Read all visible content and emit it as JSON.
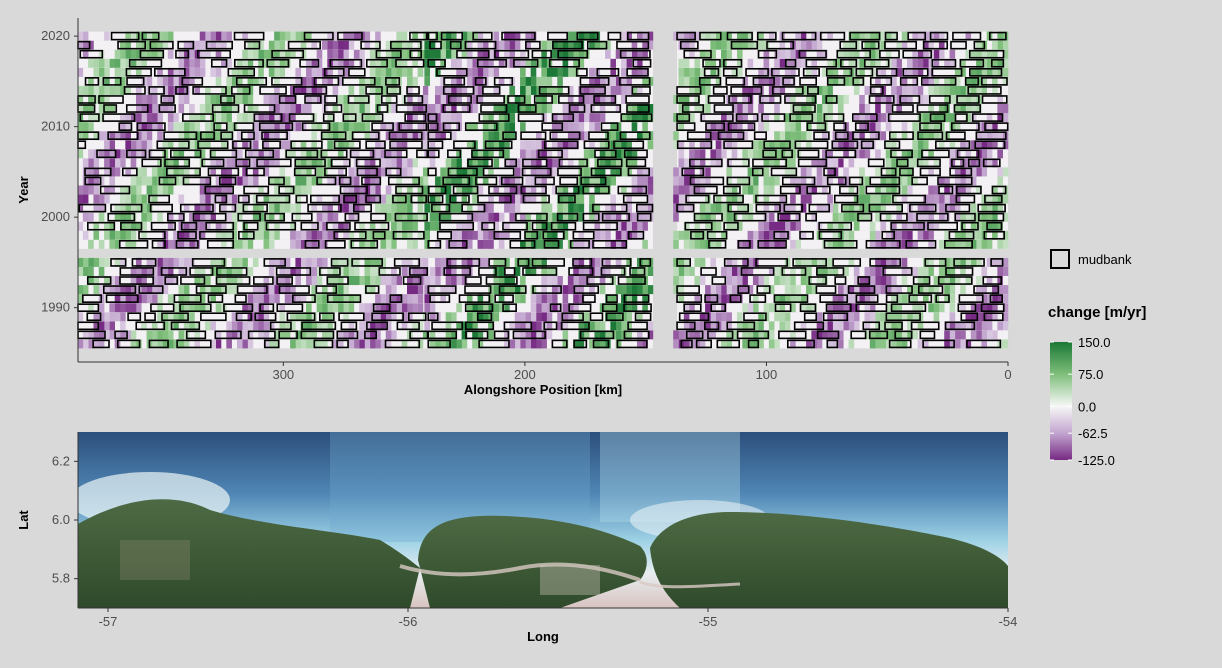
{
  "chart_data": [
    {
      "type": "heatmap",
      "title": "",
      "xlabel": "Alongshore Position [km]",
      "ylabel": "Year",
      "x_reversed": true,
      "xlim": [
        0,
        385
      ],
      "ylim": [
        1984,
        2022
      ],
      "x_ticks": [
        {
          "value": 300,
          "label": "300"
        },
        {
          "value": 200,
          "label": "200"
        },
        {
          "value": 100,
          "label": "100"
        },
        {
          "value": 0,
          "label": "0"
        }
      ],
      "y_ticks": [
        {
          "value": 1990,
          "label": "1990"
        },
        {
          "value": 2000,
          "label": "2000"
        },
        {
          "value": 2010,
          "label": "2010"
        },
        {
          "value": 2020,
          "label": "2020"
        }
      ],
      "data_years": [
        1986,
        2020
      ],
      "missing_years": [
        1996
      ],
      "segments_km": [
        [
          137,
          240
        ],
        [
          147,
          240
        ],
        [
          0,
          137
        ]
      ],
      "grid": false,
      "color_scale": {
        "title": "change [m/yr]",
        "min": -125.0,
        "max": 150.0,
        "stops": [
          {
            "value": 150.0,
            "color": "#1b7837"
          },
          {
            "value": 75.0,
            "color": "#7fbf7b"
          },
          {
            "value": 0.0,
            "color": "#f7f7f7"
          },
          {
            "value": -62.5,
            "color": "#c2a5cf"
          },
          {
            "value": -125.0,
            "color": "#762a83"
          }
        ],
        "tick_labels": [
          "150.0",
          "75.0",
          "0.0",
          "-62.5",
          "-125.0"
        ]
      },
      "overlay": {
        "name": "mudbank",
        "style": "black outlined rectangles"
      },
      "legend_position": "right"
    },
    {
      "type": "map",
      "title": "",
      "xlabel": "Long",
      "ylabel": "Lat",
      "xlim": [
        -57.1,
        -54.0
      ],
      "ylim": [
        5.7,
        6.3
      ],
      "x_ticks": [
        {
          "value": -57,
          "label": "-57"
        },
        {
          "value": -56,
          "label": "-56"
        },
        {
          "value": -55,
          "label": "-55"
        },
        {
          "value": -54,
          "label": "-54"
        }
      ],
      "y_ticks": [
        {
          "value": 5.8,
          "label": "5.8"
        },
        {
          "value": 6.0,
          "label": "6.0"
        },
        {
          "value": 6.2,
          "label": "6.2"
        }
      ]
    }
  ]
}
